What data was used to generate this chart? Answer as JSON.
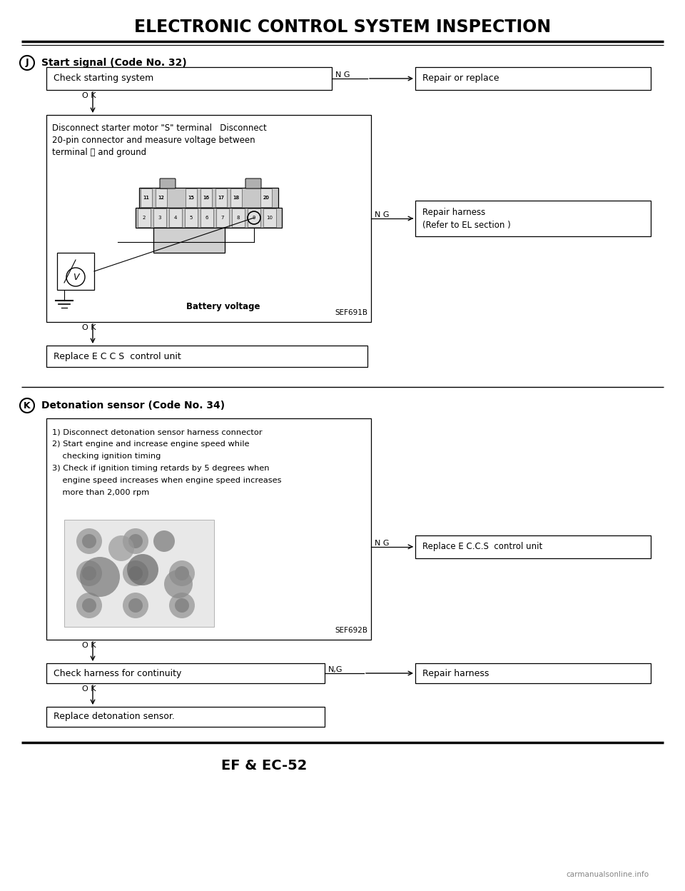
{
  "title": "ELECTRONIC CONTROL SYSTEM INSPECTION",
  "bg_color": "#ffffff",
  "section_J_label": "Start signal (Code No. 32)",
  "section_K_label": "Detonation sensor (Code No. 34)",
  "box_J1": "Check starting system",
  "box_J1_NG": "Repair or replace",
  "box_J2_line1": "Disconnect starter motor \"S\" terminal   Disconnect",
  "box_J2_line2": "20-pin connector and measure voltage between",
  "box_J2_line3": "terminal ⓘ and ground",
  "box_J2_sub": "Battery voltage",
  "box_J2_ref": "SEF691B",
  "box_J2_NG_line1": "Repair harness",
  "box_J2_NG_line2": "(Refer to EL section )",
  "box_J3": "Replace E C C S  control unit",
  "box_K1_lines": [
    "1) Disconnect detonation sensor harness connector",
    "2) Start engine and increase engine speed while",
    "    checking ignition timing",
    "3) Check if ignition timing retards by 5 degrees when",
    "    engine speed increases when engine speed increases",
    "    more than 2,000 rpm"
  ],
  "box_K1_ref": "SEF692B",
  "box_K1_NG": "Replace E C.C.S  control unit",
  "box_K2": "Check harness for continuity",
  "box_K2_NG": "Repair harness",
  "box_K3": "Replace detonation sensor.",
  "footer": "EF & EC-52",
  "watermark": "carmanualsonline.info"
}
